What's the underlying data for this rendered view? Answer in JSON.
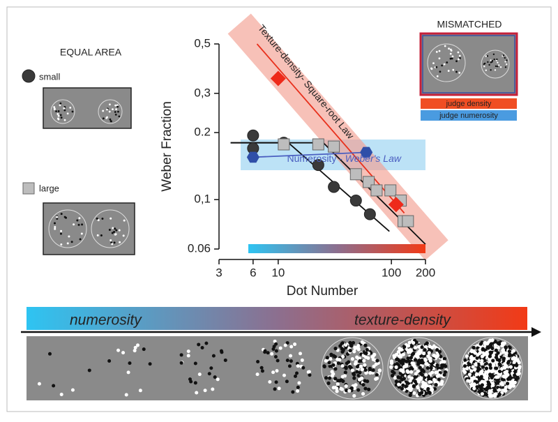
{
  "chart_data": {
    "type": "scatter",
    "x_label": "Dot Number",
    "y_label": "Weber Fraction",
    "xscale": "log",
    "yscale": "log",
    "xlim": [
      3,
      200
    ],
    "ylim": [
      0.06,
      0.5
    ],
    "xticks": [
      3,
      6,
      10,
      100,
      200
    ],
    "yticks": [
      {
        "value": 0.5,
        "label": "0,5"
      },
      {
        "value": 0.3,
        "label": "0,3"
      },
      0.2,
      {
        "value": 0.1,
        "label": "0,1"
      },
      0.06
    ],
    "annotations": {
      "texture_law": "Texture-density- Square-root Law",
      "numerosity_law": "Numerosity - ",
      "numerosity_law_italic": "Weber's Law"
    },
    "series": [
      {
        "name": "small",
        "marker": "circle",
        "color": "#3a3a3a",
        "x": [
          6,
          6,
          11.2,
          22.6,
          31,
          48.6,
          64.6
        ],
        "values": [
          0.194,
          0.17,
          0.18,
          0.143,
          0.114,
          0.099,
          0.086
        ]
      },
      {
        "name": "large",
        "marker": "square",
        "color": "#bdbdbd",
        "x": [
          11.2,
          22.6,
          31,
          48.6,
          63,
          74,
          98,
          121,
          128,
          140
        ],
        "values": [
          0.177,
          0.177,
          0.173,
          0.13,
          0.12,
          0.11,
          0.11,
          0.099,
          0.08,
          0.08
        ]
      },
      {
        "marker": "hexagon",
        "color": "#2f4fa8",
        "x": [
          6,
          60
        ],
        "values": [
          0.155,
          0.163
        ]
      },
      {
        "marker": "diamond",
        "color": "#ee2a1a",
        "x": [
          10,
          110
        ],
        "values": [
          0.35,
          0.095
        ]
      }
    ],
    "lines": [
      {
        "color": "#111111",
        "x": [
          3.8,
          12.3,
          96
        ],
        "values": [
          0.18,
          0.18,
          0.072
        ]
      },
      {
        "color": "#111111",
        "x": [
          3.8,
          25,
          200
        ],
        "values": [
          0.18,
          0.18,
          0.063
        ]
      },
      {
        "color": "#e8301c",
        "x": [
          6.5,
          130
        ],
        "values": [
          0.5,
          0.087
        ]
      },
      {
        "color": "#4a5ec0",
        "x": [
          6,
          60
        ],
        "values": [
          0.155,
          0.163
        ]
      }
    ]
  },
  "figure": {
    "equal_area": "EQUAL AREA",
    "mismatched": "MISMATCHED",
    "judge_density": "judge density",
    "judge_numerosity": "judge numerosity",
    "numerosity": "numerosity",
    "texture_density": "texture-density"
  }
}
